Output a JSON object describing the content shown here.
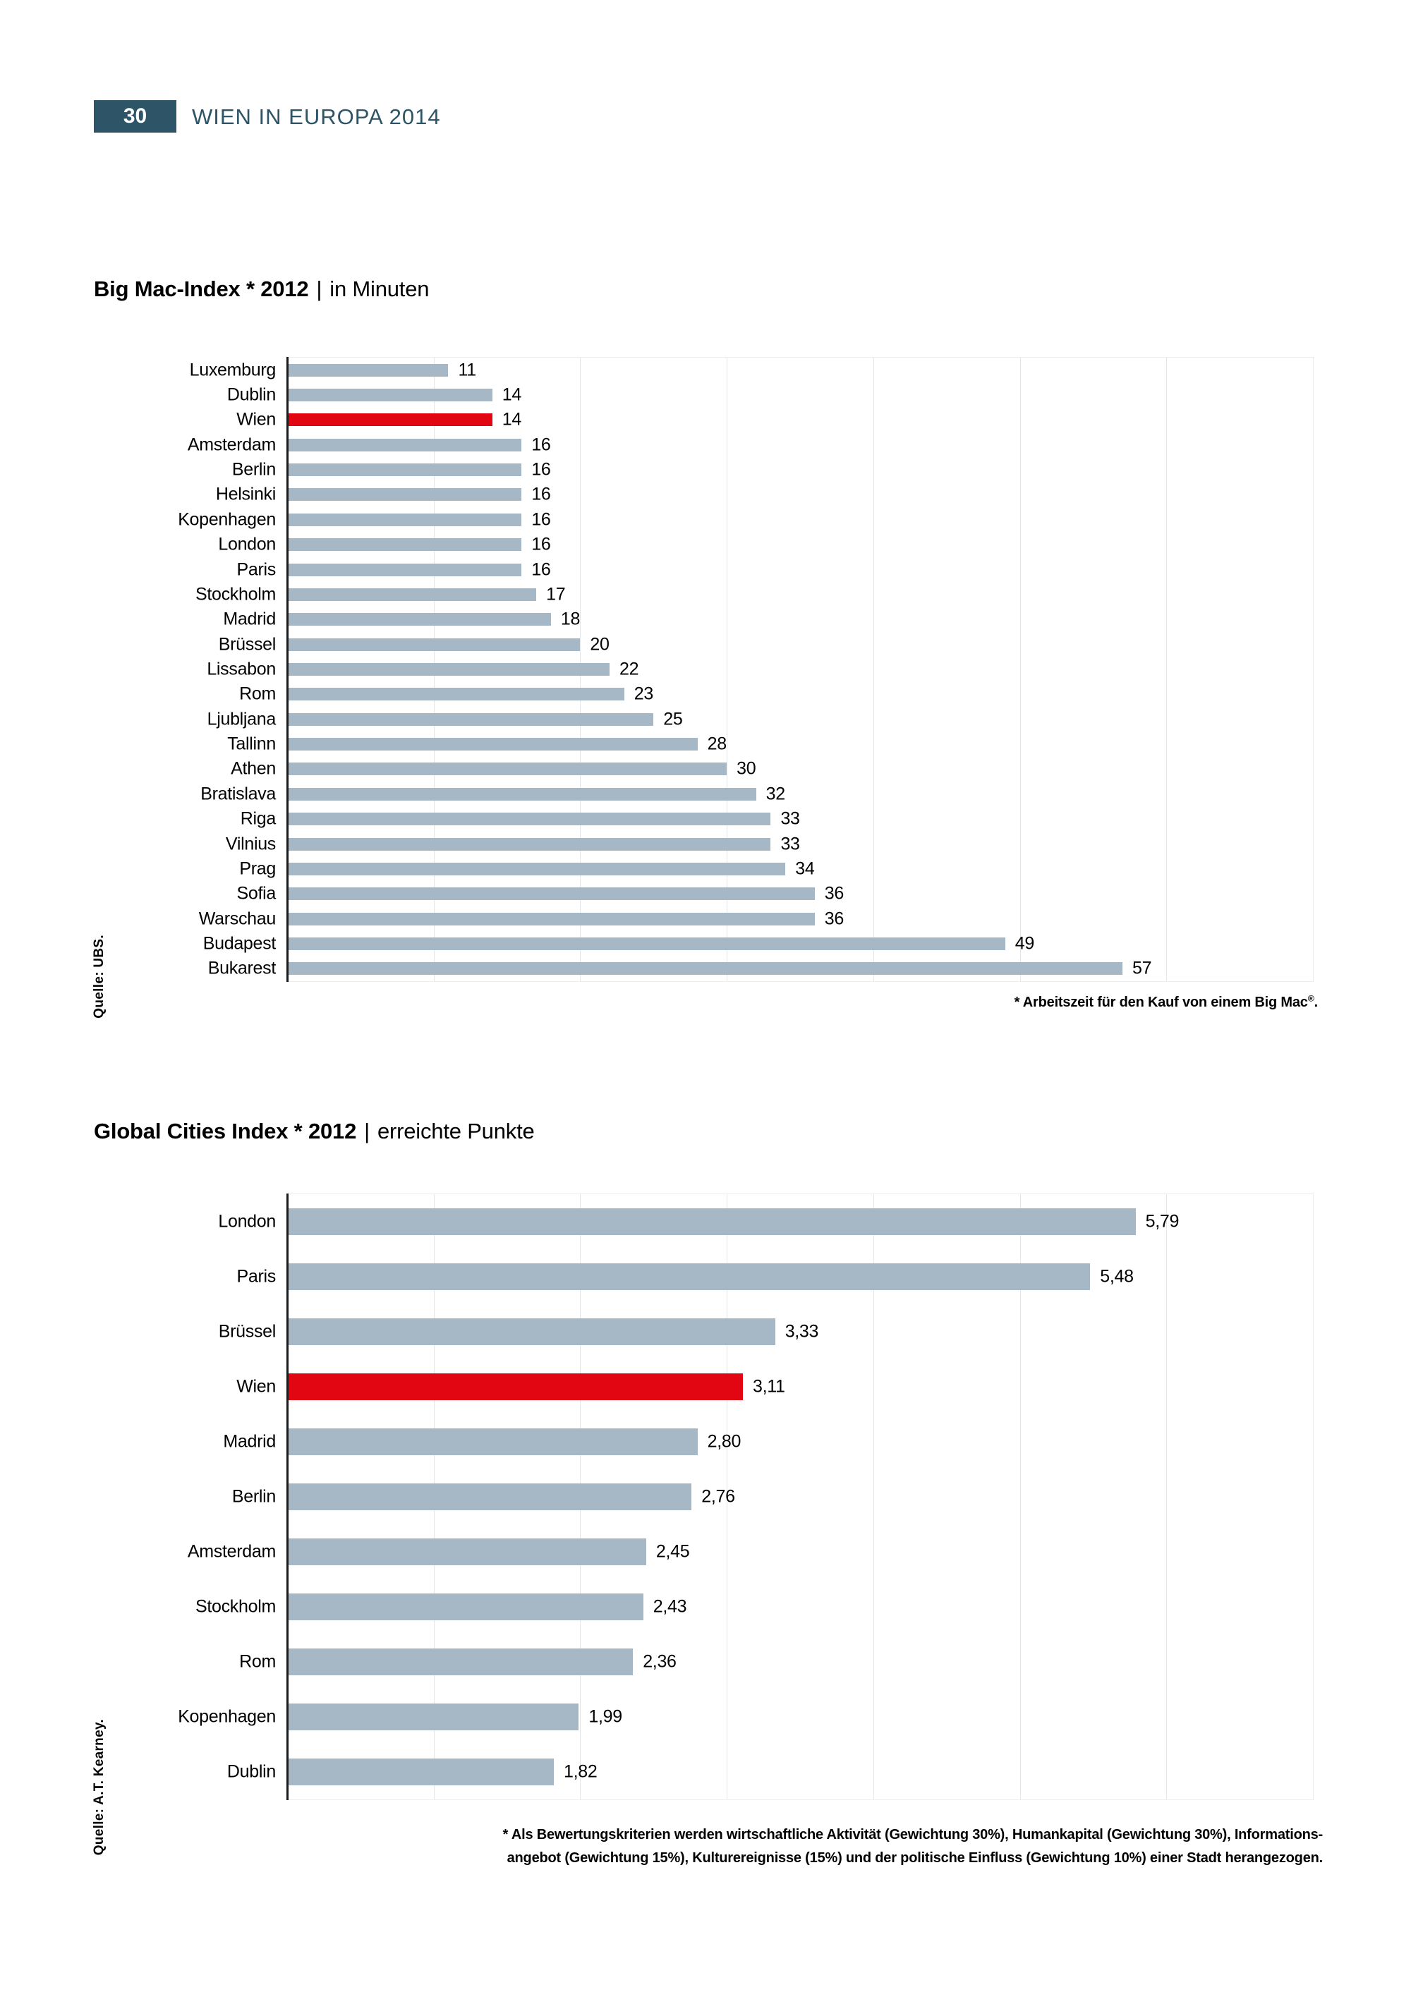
{
  "header": {
    "page_number": "30",
    "title": "WIEN IN EUROPA 2014"
  },
  "colors": {
    "accent_teal": "#2e5468",
    "bar": "#a6b8c6",
    "bar_highlight": "#e20613",
    "gridline": "#e4e7ea",
    "plot_border": "#ececec",
    "axis": "#1a1a1a"
  },
  "chart_data": [
    {
      "type": "bar",
      "orientation": "horizontal",
      "title_bold": "Big Mac-Index * 2012",
      "title_separator": "|",
      "title_unit": "in Minuten",
      "categories": [
        "Luxemburg",
        "Dublin",
        "Wien",
        "Amsterdam",
        "Berlin",
        "Helsinki",
        "Kopenhagen",
        "London",
        "Paris",
        "Stockholm",
        "Madrid",
        "Brüssel",
        "Lissabon",
        "Rom",
        "Ljubljana",
        "Tallinn",
        "Athen",
        "Bratislava",
        "Riga",
        "Vilnius",
        "Prag",
        "Sofia",
        "Warschau",
        "Budapest",
        "Bukarest"
      ],
      "values": [
        11,
        14,
        14,
        16,
        16,
        16,
        16,
        16,
        16,
        17,
        18,
        20,
        22,
        23,
        25,
        28,
        30,
        32,
        33,
        33,
        34,
        36,
        36,
        49,
        57
      ],
      "value_labels": [
        "11",
        "14",
        "14",
        "16",
        "16",
        "16",
        "16",
        "16",
        "16",
        "17",
        "18",
        "20",
        "22",
        "23",
        "25",
        "28",
        "30",
        "32",
        "33",
        "33",
        "34",
        "36",
        "36",
        "49",
        "57"
      ],
      "highlight_category": "Wien",
      "xlim": [
        0,
        70
      ],
      "grid_interval": 10,
      "grid": "vertical-lines",
      "legend": "none",
      "footnote_pre": "* Arbeitszeit für den Kauf von einem Big Mac",
      "footnote_sup": "®",
      "footnote_post": ".",
      "source": "Quelle: UBS."
    },
    {
      "type": "bar",
      "orientation": "horizontal",
      "title_bold": "Global Cities Index * 2012",
      "title_separator": "|",
      "title_unit": "erreichte Punkte",
      "categories": [
        "London",
        "Paris",
        "Brüssel",
        "Wien",
        "Madrid",
        "Berlin",
        "Amsterdam",
        "Stockholm",
        "Rom",
        "Kopenhagen",
        "Dublin"
      ],
      "values": [
        5.79,
        5.48,
        3.33,
        3.11,
        2.8,
        2.76,
        2.45,
        2.43,
        2.36,
        1.99,
        1.82
      ],
      "value_labels": [
        "5,79",
        "5,48",
        "3,33",
        "3,11",
        "2,80",
        "2,76",
        "2,45",
        "2,43",
        "2,36",
        "1,99",
        "1,82"
      ],
      "highlight_category": "Wien",
      "xlim": [
        0,
        7
      ],
      "grid_interval": 1,
      "grid": "vertical-lines",
      "legend": "none",
      "footnote_lines": [
        "* Als Bewertungskriterien werden wirtschaftliche Aktivität (Gewichtung 30%), Humankapital (Gewichtung 30%), Informations-",
        "angebot (Gewichtung 15%), Kulturereignisse (15%) und der politische Einfluss (Gewichtung 10%) einer Stadt herangezogen."
      ],
      "source": "Quelle: A.T. Kearney."
    }
  ]
}
